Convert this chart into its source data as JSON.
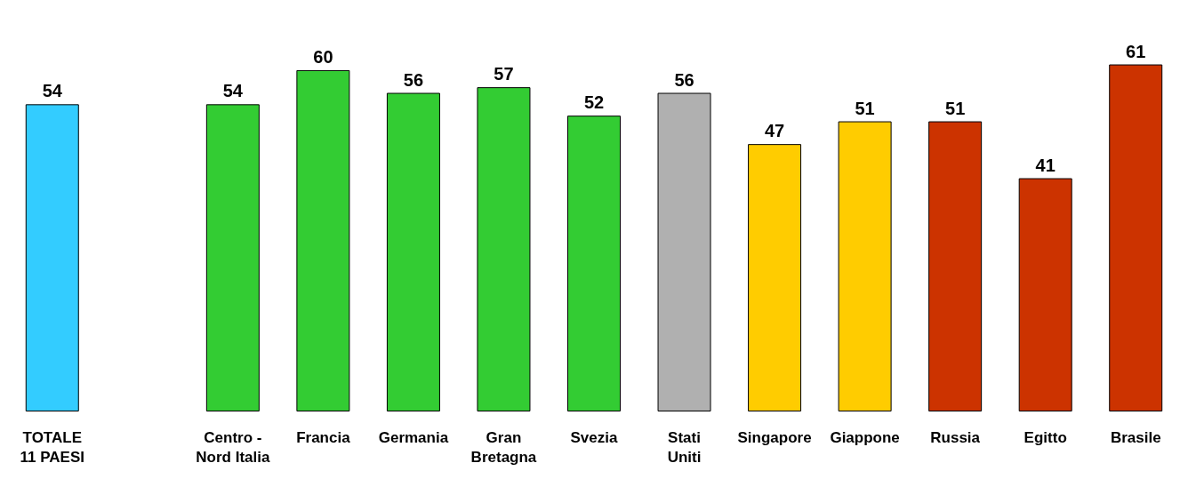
{
  "chart_data": {
    "type": "bar",
    "categories": [
      "TOTALE\n11 PAESI",
      null,
      "Centro -\nNord Italia",
      "Francia",
      "Germania",
      "Gran\nBretagna",
      "Svezia",
      "Stati\nUniti",
      "Singapore",
      "Giappone",
      "Russia",
      "Egitto",
      "Brasile"
    ],
    "values": [
      54,
      null,
      54,
      60,
      56,
      57,
      52,
      56,
      47,
      51,
      51,
      41,
      61
    ],
    "colors": [
      "#33ccff",
      "#ffffff",
      "#33cc33",
      "#33cc33",
      "#33cc33",
      "#33cc33",
      "#33cc33",
      "#b0b0b0",
      "#ffcc00",
      "#ffcc00",
      "#cc3300",
      "#cc3300",
      "#cc3300"
    ],
    "data_labels": true,
    "grid": false
  }
}
